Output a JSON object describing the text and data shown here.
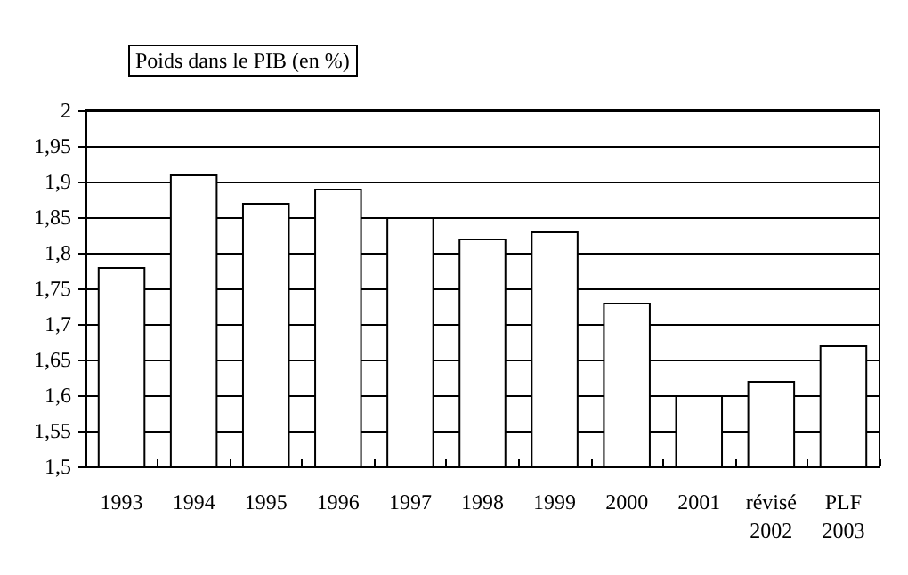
{
  "chart_data": {
    "type": "bar",
    "title": "Poids dans le PIB (en %)",
    "categories": [
      "1993",
      "1994",
      "1995",
      "1996",
      "1997",
      "1998",
      "1999",
      "2000",
      "2001",
      "révisé\n2002",
      "PLF\n2003"
    ],
    "values": [
      1.78,
      1.91,
      1.87,
      1.89,
      1.85,
      1.82,
      1.83,
      1.73,
      1.6,
      1.62,
      1.67
    ],
    "color": "#ffffff",
    "ylim": [
      1.5,
      2
    ],
    "yticks": [
      {
        "value": 1.5,
        "label": "1,5"
      },
      {
        "value": 1.55,
        "label": "1,55"
      },
      {
        "value": 1.6,
        "label": "1,6"
      },
      {
        "value": 1.65,
        "label": "1,65"
      },
      {
        "value": 1.7,
        "label": "1,7"
      },
      {
        "value": 1.75,
        "label": "1,75"
      },
      {
        "value": 1.8,
        "label": "1,8"
      },
      {
        "value": 1.85,
        "label": "1,85"
      },
      {
        "value": 1.9,
        "label": "1,9"
      },
      {
        "value": 1.95,
        "label": "1,95"
      },
      {
        "value": 2,
        "label": "2"
      }
    ],
    "grid": "y"
  }
}
